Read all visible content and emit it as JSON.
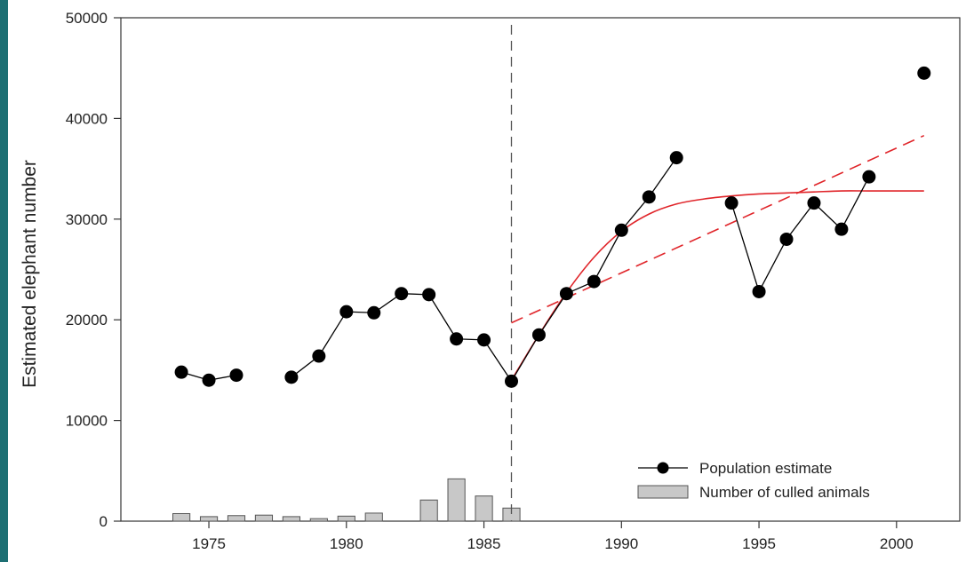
{
  "chart_data": {
    "type": "line",
    "ylabel": "Estimated elephant number",
    "xlabel": "",
    "xlim": [
      1971.8,
      2002.3
    ],
    "ylim": [
      0,
      50000
    ],
    "x_ticks": [
      1975,
      1980,
      1985,
      1990,
      1995,
      2000
    ],
    "y_ticks": [
      0,
      10000,
      20000,
      30000,
      40000,
      50000
    ],
    "legend": {
      "placement": "bottom-right",
      "entries": [
        "Population estimate",
        "Number of culled animals"
      ]
    },
    "population_segments": [
      [
        [
          1974,
          14800
        ],
        [
          1975,
          14000
        ],
        [
          1976,
          14500
        ]
      ],
      [
        [
          1978,
          14300
        ],
        [
          1979,
          16400
        ],
        [
          1980,
          20800
        ],
        [
          1981,
          20700
        ],
        [
          1982,
          22600
        ],
        [
          1983,
          22500
        ],
        [
          1984,
          18100
        ],
        [
          1985,
          18000
        ],
        [
          1986,
          13900
        ],
        [
          1987,
          18500
        ],
        [
          1988,
          22600
        ],
        [
          1989,
          23800
        ],
        [
          1990,
          28900
        ],
        [
          1991,
          32200
        ],
        [
          1992,
          36100
        ]
      ],
      [
        [
          1994,
          31600
        ],
        [
          1995,
          22800
        ],
        [
          1996,
          28000
        ],
        [
          1997,
          31600
        ],
        [
          1998,
          29000
        ],
        [
          1999,
          34200
        ]
      ],
      [
        [
          2001,
          44500
        ]
      ]
    ],
    "culled": [
      {
        "x": 1974,
        "y": 750
      },
      {
        "x": 1975,
        "y": 450
      },
      {
        "x": 1976,
        "y": 550
      },
      {
        "x": 1977,
        "y": 600
      },
      {
        "x": 1978,
        "y": 450
      },
      {
        "x": 1979,
        "y": 250
      },
      {
        "x": 1980,
        "y": 500
      },
      {
        "x": 1981,
        "y": 800
      },
      {
        "x": 1983,
        "y": 2100
      },
      {
        "x": 1984,
        "y": 4200
      },
      {
        "x": 1985,
        "y": 2500
      },
      {
        "x": 1986,
        "y": 1300
      }
    ],
    "logistic_fit": [
      [
        1986,
        14000
      ],
      [
        1987,
        18500
      ],
      [
        1988,
        22700
      ],
      [
        1989,
        26200
      ],
      [
        1990,
        28800
      ],
      [
        1991,
        30500
      ],
      [
        1992,
        31500
      ],
      [
        1993,
        32000
      ],
      [
        1994,
        32300
      ],
      [
        1995,
        32500
      ],
      [
        1996,
        32600
      ],
      [
        1997,
        32700
      ],
      [
        1998,
        32800
      ],
      [
        1999,
        32800
      ],
      [
        2000,
        32800
      ],
      [
        2001,
        32800
      ]
    ],
    "linear_fit": [
      [
        1986,
        19700
      ],
      [
        2001,
        38300
      ]
    ],
    "vline_x": 1986,
    "colors": {
      "population": "#000000",
      "bars_fill": "#c8c8c8",
      "bars_stroke": "#555555",
      "fit": "#e0252a",
      "vline": "#555555",
      "left_band": "#1d6f73"
    }
  }
}
